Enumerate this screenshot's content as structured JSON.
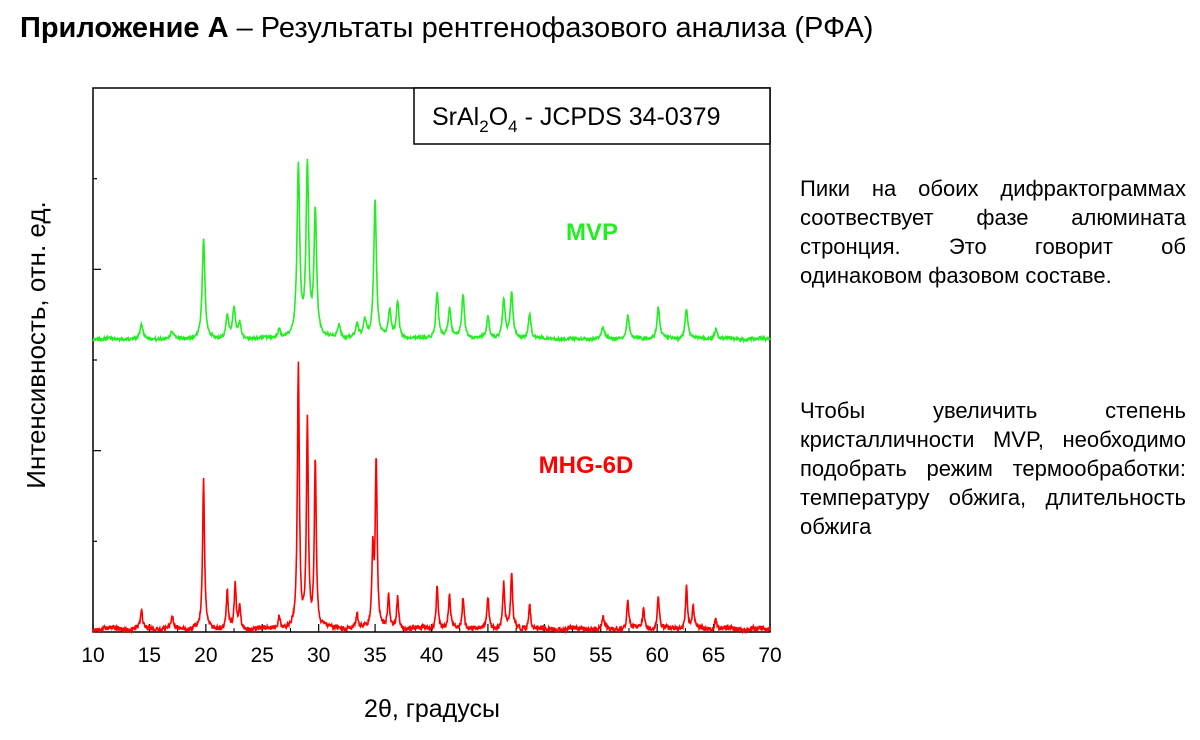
{
  "header": {
    "title_bold": "Приложение А",
    "title_rest": " – Результаты рентгенофазового анализа (РФА)"
  },
  "notes": [
    "Пики на обоих дифрактограммах соотвествует фазе алюмината стронция. Это говорит об одинаковом фазовом составе.",
    "Чтобы увеличить степень кристалличности MVP, необходимо подобрать режим термообработки: температуру обжига, длительность обжига"
  ],
  "chart_data": {
    "type": "line",
    "xlabel": "2θ, градусы",
    "ylabel": "Интенсивность, отн. ед.",
    "xlim": [
      10,
      70
    ],
    "xticks": [
      10,
      15,
      20,
      25,
      30,
      35,
      40,
      45,
      50,
      55,
      60,
      65,
      70
    ],
    "legend_box": {
      "formula_base": "SrAl",
      "sub1": "2",
      "formula_mid": "O",
      "sub2": "4",
      "suffix": " - JCPDS 34-0379"
    },
    "series": [
      {
        "name": "MVP",
        "color": "#22ee22",
        "peaks": [
          [
            14.3,
            0.08
          ],
          [
            17.0,
            0.04
          ],
          [
            19.8,
            0.55
          ],
          [
            21.9,
            0.12
          ],
          [
            22.5,
            0.16
          ],
          [
            23.0,
            0.08
          ],
          [
            26.5,
            0.05
          ],
          [
            28.2,
            0.95
          ],
          [
            29.0,
            0.95
          ],
          [
            29.7,
            0.7
          ],
          [
            31.8,
            0.08
          ],
          [
            33.4,
            0.08
          ],
          [
            34.1,
            0.1
          ],
          [
            35.0,
            0.77
          ],
          [
            36.3,
            0.15
          ],
          [
            37.0,
            0.2
          ],
          [
            40.5,
            0.26
          ],
          [
            41.6,
            0.17
          ],
          [
            42.8,
            0.25
          ],
          [
            45.0,
            0.12
          ],
          [
            46.4,
            0.22
          ],
          [
            47.1,
            0.25
          ],
          [
            48.7,
            0.14
          ],
          [
            55.2,
            0.06
          ],
          [
            57.4,
            0.13
          ],
          [
            60.1,
            0.18
          ],
          [
            62.6,
            0.17
          ],
          [
            65.2,
            0.06
          ]
        ]
      },
      {
        "name": "MHG-6D",
        "color": "#ff0000",
        "peaks": [
          [
            14.3,
            0.07
          ],
          [
            17.0,
            0.05
          ],
          [
            19.8,
            0.55
          ],
          [
            21.9,
            0.14
          ],
          [
            22.6,
            0.16
          ],
          [
            23.0,
            0.08
          ],
          [
            26.5,
            0.05
          ],
          [
            28.2,
            0.98
          ],
          [
            29.0,
            0.77
          ],
          [
            29.7,
            0.63
          ],
          [
            33.4,
            0.05
          ],
          [
            34.8,
            0.28
          ],
          [
            35.1,
            0.63
          ],
          [
            36.2,
            0.12
          ],
          [
            37.0,
            0.12
          ],
          [
            40.5,
            0.16
          ],
          [
            41.6,
            0.12
          ],
          [
            42.8,
            0.12
          ],
          [
            45.0,
            0.12
          ],
          [
            46.4,
            0.17
          ],
          [
            47.1,
            0.2
          ],
          [
            48.7,
            0.09
          ],
          [
            55.2,
            0.04
          ],
          [
            57.4,
            0.11
          ],
          [
            58.8,
            0.08
          ],
          [
            60.1,
            0.12
          ],
          [
            62.6,
            0.16
          ],
          [
            63.2,
            0.08
          ],
          [
            65.2,
            0.04
          ]
        ]
      }
    ]
  }
}
